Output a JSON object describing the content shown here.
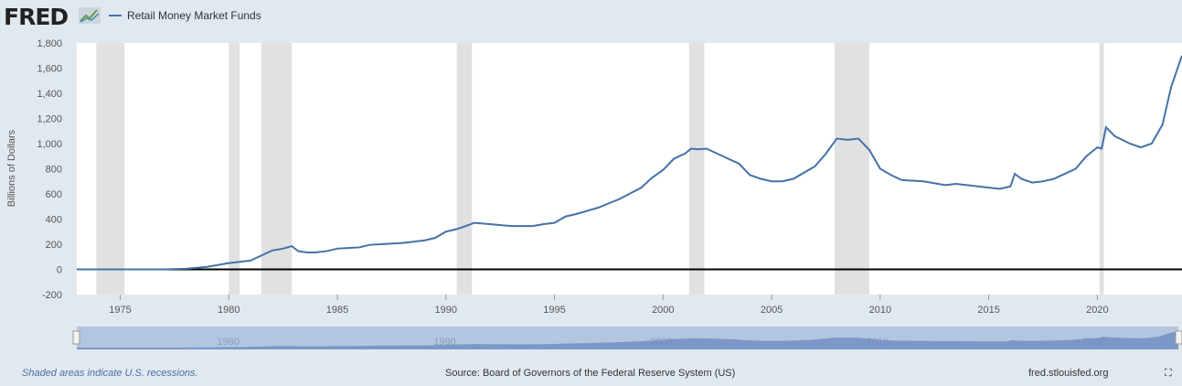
{
  "header": {
    "logo": "FRED",
    "legend_label": "Retail Money Market Funds"
  },
  "footer": {
    "note": "Shaded areas indicate U.S. recessions.",
    "source": "Source: Board of Governors of the Federal Reserve System (US)",
    "site": "fred.stlouisfed.org"
  },
  "colors": {
    "line": "#4572a7",
    "recession": "#e1e1e1",
    "navigator": "#b4c5e0"
  },
  "chart_data": {
    "type": "line",
    "title": "Retail Money Market Funds",
    "ylabel": "Billions of Dollars",
    "xlabel": "",
    "xlim": [
      1973,
      2023.9
    ],
    "ylim": [
      -200,
      1800
    ],
    "yticks": [
      -200,
      0,
      200,
      400,
      600,
      800,
      1000,
      1200,
      1400,
      1600,
      1800
    ],
    "ytick_labels": [
      "-200",
      "0",
      "200",
      "400",
      "600",
      "800",
      "1,000",
      "1,200",
      "1,400",
      "1,600",
      "1,800"
    ],
    "xticks": [
      1975,
      1980,
      1985,
      1990,
      1995,
      2000,
      2005,
      2010,
      2015,
      2020
    ],
    "navigator_ticks": [
      1980,
      1990,
      2000,
      2010,
      2020
    ],
    "recessions": [
      [
        1973.9,
        1975.2
      ],
      [
        1980.0,
        1980.5
      ],
      [
        1981.5,
        1982.9
      ],
      [
        1990.5,
        1991.2
      ],
      [
        2001.2,
        2001.9
      ],
      [
        2007.9,
        2009.5
      ],
      [
        2020.1,
        2020.3
      ]
    ],
    "series": [
      {
        "name": "Retail Money Market Funds",
        "x": [
          1973,
          1977,
          1978,
          1979,
          1980,
          1980.5,
          1981,
          1981.5,
          1982,
          1982.5,
          1982.9,
          1983.2,
          1983.6,
          1984,
          1984.5,
          1985,
          1986,
          1986.5,
          1987,
          1988,
          1989,
          1989.5,
          1990,
          1990.5,
          1991,
          1991.3,
          1992,
          1993,
          1994,
          1994.5,
          1995,
          1995.5,
          1996,
          1997,
          1998,
          1999,
          1999.5,
          2000,
          2000.5,
          2001,
          2001.3,
          2001.6,
          2002,
          2002.5,
          2003,
          2003.5,
          2004,
          2004.5,
          2005,
          2005.5,
          2006,
          2007,
          2007.5,
          2008,
          2008.5,
          2009,
          2009.5,
          2010,
          2010.5,
          2011,
          2012,
          2013,
          2013.5,
          2014,
          2015,
          2015.5,
          2016,
          2016.2,
          2016.5,
          2017,
          2017.5,
          2018,
          2019,
          2019.5,
          2020,
          2020.2,
          2020.4,
          2020.8,
          2021.5,
          2022,
          2022.5,
          2023,
          2023.4,
          2023.9
        ],
        "values": [
          0,
          0,
          5,
          20,
          50,
          60,
          70,
          110,
          150,
          165,
          185,
          145,
          135,
          135,
          145,
          165,
          175,
          195,
          200,
          210,
          230,
          250,
          300,
          320,
          350,
          370,
          360,
          345,
          345,
          360,
          370,
          420,
          440,
          490,
          560,
          650,
          730,
          790,
          880,
          920,
          960,
          955,
          960,
          920,
          880,
          840,
          750,
          720,
          700,
          700,
          720,
          820,
          920,
          1040,
          1030,
          1040,
          950,
          800,
          750,
          710,
          700,
          670,
          680,
          670,
          650,
          640,
          660,
          760,
          720,
          690,
          700,
          720,
          800,
          900,
          970,
          960,
          1130,
          1060,
          1000,
          970,
          1000,
          1150,
          1450,
          1700
        ]
      }
    ]
  }
}
